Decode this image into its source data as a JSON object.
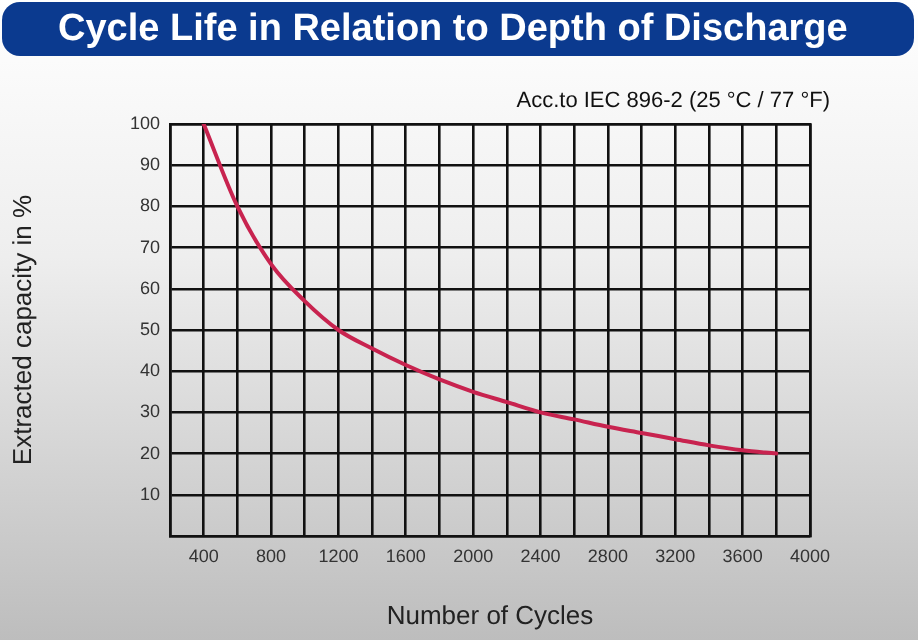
{
  "chart_data": {
    "type": "line",
    "title": "Cycle Life in Relation to Depth of Discharge",
    "xlabel": "Number of Cycles",
    "ylabel": "Extracted capacity in %",
    "annotations": [
      "Acc.to IEC 896-2 (25 °C / 77 °F)"
    ],
    "x": [
      400,
      600,
      800,
      1000,
      1200,
      1400,
      1600,
      1800,
      2000,
      2200,
      2400,
      2600,
      2800,
      3000,
      3200,
      3400,
      3600,
      3800
    ],
    "series": [
      {
        "color": "#c8234f",
        "values": [
          100,
          80,
          66,
          57,
          50,
          45.5,
          41.5,
          38,
          35,
          32.5,
          30,
          28.3,
          26.5,
          25,
          23.5,
          22,
          20.8,
          20
        ]
      }
    ],
    "xlim": [
      200,
      4000
    ],
    "xticks": [
      {
        "value": 200,
        "label": null
      },
      400,
      {
        "value": 600,
        "label": null
      },
      800,
      {
        "value": 1000,
        "label": null
      },
      1200,
      {
        "value": 1400,
        "label": null
      },
      1600,
      {
        "value": 1800,
        "label": null
      },
      2000,
      {
        "value": 2200,
        "label": null
      },
      2400,
      {
        "value": 2600,
        "label": null
      },
      2800,
      {
        "value": 3000,
        "label": null
      },
      3200,
      {
        "value": 3400,
        "label": null
      },
      3600,
      {
        "value": 3800,
        "label": null
      },
      4000
    ],
    "ylim": [
      0,
      100
    ],
    "yticks": [
      {
        "value": 0,
        "label": null
      },
      10,
      20,
      30,
      40,
      50,
      60,
      70,
      80,
      90,
      100
    ],
    "grid": true,
    "marker": "none",
    "line_style": "solid"
  }
}
